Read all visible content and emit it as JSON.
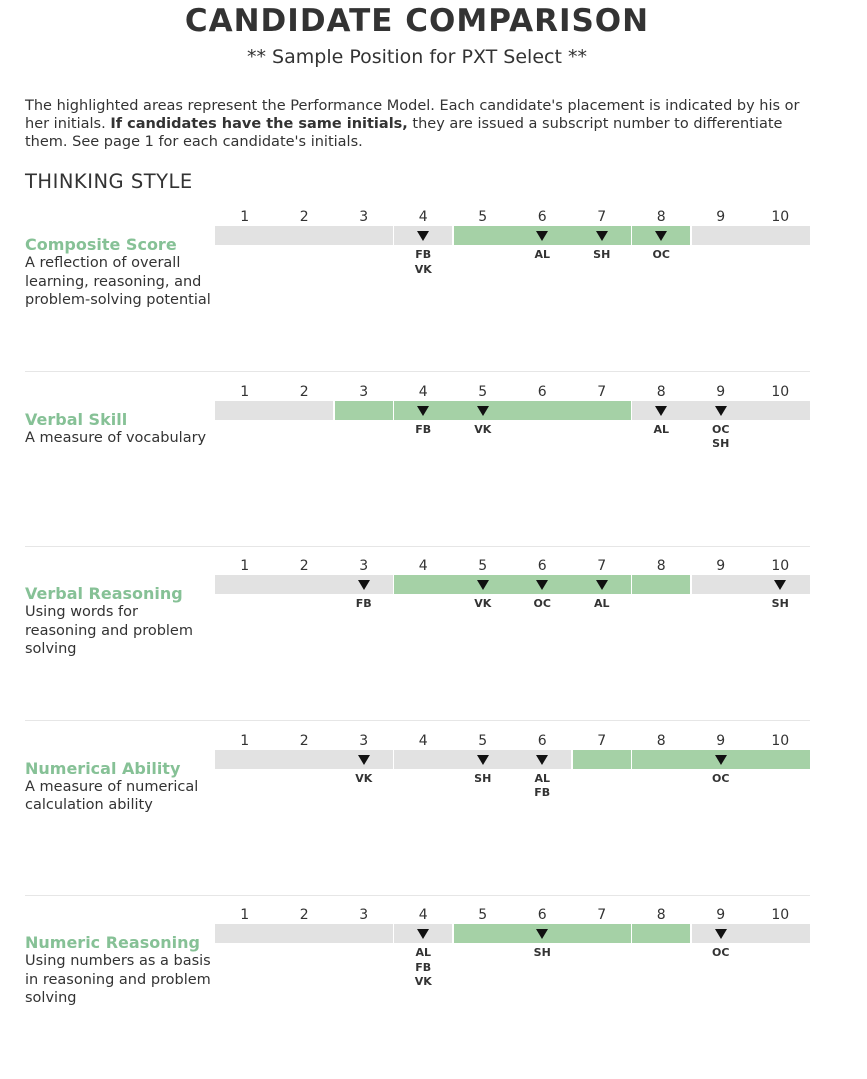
{
  "header": {
    "title": "CANDIDATE COMPARISON",
    "subtitle": "** Sample Position for PXT Select **"
  },
  "intro": {
    "part1": "The highlighted areas represent the Performance Model. Each candidate's placement is indicated by his or her initials. ",
    "bold": "If candidates have the same initials,",
    "part2": " they are issued a subscript number to differentiate them. See page 1 for each candidate's initials."
  },
  "section": {
    "title": "THINKING STYLE"
  },
  "scale_numbers": [
    "1",
    "2",
    "3",
    "4",
    "5",
    "6",
    "7",
    "8",
    "9",
    "10"
  ],
  "colors": {
    "model_green": "#a5d1a6",
    "track_gray": "#e2e2e2",
    "trait_green": "#86c196",
    "marker": "#111111"
  },
  "traits": [
    {
      "name": "Composite Score",
      "description": "A reflection of overall learning, reasoning, and problem-solving potential",
      "model_range": [
        5,
        8
      ],
      "placements": [
        {
          "score": 4,
          "initials": [
            "FB",
            "VK"
          ]
        },
        {
          "score": 6,
          "initials": [
            "AL"
          ]
        },
        {
          "score": 7,
          "initials": [
            "SH"
          ]
        },
        {
          "score": 8,
          "initials": [
            "OC"
          ]
        }
      ]
    },
    {
      "name": "Verbal Skill",
      "description": "A measure of vocabulary",
      "model_range": [
        3,
        7
      ],
      "placements": [
        {
          "score": 4,
          "initials": [
            "FB"
          ]
        },
        {
          "score": 5,
          "initials": [
            "VK"
          ]
        },
        {
          "score": 8,
          "initials": [
            "AL"
          ]
        },
        {
          "score": 9,
          "initials": [
            "OC",
            "SH"
          ]
        }
      ]
    },
    {
      "name": "Verbal Reasoning",
      "description": "Using words for reasoning and problem solving",
      "model_range": [
        4,
        8
      ],
      "placements": [
        {
          "score": 3,
          "initials": [
            "FB"
          ]
        },
        {
          "score": 5,
          "initials": [
            "VK"
          ]
        },
        {
          "score": 6,
          "initials": [
            "OC"
          ]
        },
        {
          "score": 7,
          "initials": [
            "AL"
          ]
        },
        {
          "score": 10,
          "initials": [
            "SH"
          ]
        }
      ]
    },
    {
      "name": "Numerical Ability",
      "description": "A measure of numerical calculation ability",
      "model_range": [
        7,
        10
      ],
      "placements": [
        {
          "score": 3,
          "initials": [
            "VK"
          ]
        },
        {
          "score": 5,
          "initials": [
            "SH"
          ]
        },
        {
          "score": 6,
          "initials": [
            "AL",
            "FB"
          ]
        },
        {
          "score": 9,
          "initials": [
            "OC"
          ]
        }
      ]
    },
    {
      "name": "Numeric Reasoning",
      "description": "Using numbers as a basis in reasoning and problem solving",
      "model_range": [
        5,
        8
      ],
      "placements": [
        {
          "score": 4,
          "initials": [
            "AL",
            "FB",
            "VK"
          ]
        },
        {
          "score": 6,
          "initials": [
            "SH"
          ]
        },
        {
          "score": 9,
          "initials": [
            "OC"
          ]
        }
      ]
    }
  ]
}
